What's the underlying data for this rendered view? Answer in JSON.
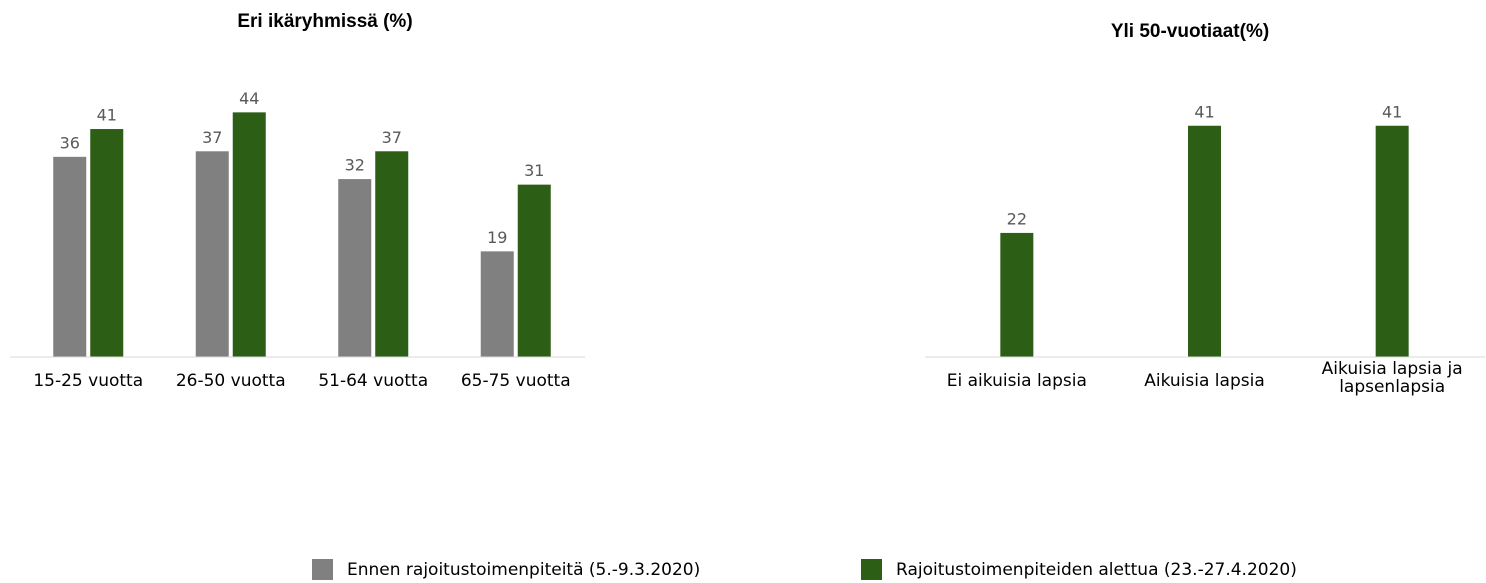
{
  "chart_data": [
    {
      "type": "bar",
      "title": "Eri ikäryhmissä (%)",
      "categories": [
        "15-25 vuotta",
        "26-50 vuotta",
        "51-64 vuotta",
        "65-75 vuotta"
      ],
      "series": [
        {
          "name": "Ennen rajoitustoimenpiteitä (5.-9.3.2020)",
          "color": "#808080",
          "values": [
            36,
            37,
            32,
            19
          ]
        },
        {
          "name": "Rajoitustoimenpiteiden alettua (23.-27.4.2020)",
          "color": "#2d5e16",
          "values": [
            41,
            44,
            37,
            31
          ]
        }
      ],
      "ylim": [
        0,
        50
      ],
      "legend": "bottom"
    },
    {
      "type": "bar",
      "title": "Yli 50-vuotiaat(%)",
      "categories": [
        "Ei aikuisia lapsia",
        "Aikuisia lapsia",
        "Aikuisia lapsia ja lapsenlapsia"
      ],
      "series": [
        {
          "color": "#2d5e16",
          "values": [
            22,
            41,
            41
          ]
        }
      ],
      "ylim": [
        0,
        50
      ]
    }
  ]
}
